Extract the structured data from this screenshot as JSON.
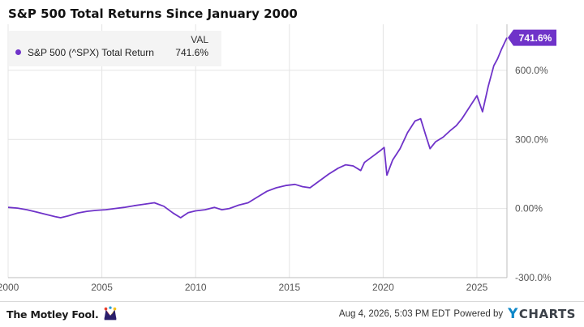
{
  "title": "S&P 500 Total Returns Since January 2000",
  "legend": {
    "header": "VAL",
    "series_name": "S&P 500 (^SPX) Total Return",
    "series_value": "741.6%",
    "color": "#6f33c9"
  },
  "last_value_label": "741.6%",
  "footer": {
    "brand": "The Motley Fool.",
    "brand_icon": "jester-hat-icon",
    "timestamp": "Aug 4, 2026, 5:03 PM EDT",
    "powered_by": "Powered by",
    "provider": "CHARTS",
    "provider_mark": "Y"
  },
  "chart_data": {
    "type": "line",
    "title": "S&P 500 Total Returns Since January 2000",
    "xlabel": "",
    "ylabel": "",
    "xlim": [
      2000,
      2026.6
    ],
    "ylim": [
      -300,
      800
    ],
    "x_ticks": [
      2000,
      2005,
      2010,
      2015,
      2020,
      2025
    ],
    "x_tick_labels": [
      "2000",
      "2005",
      "2010",
      "2015",
      "2020",
      "2025"
    ],
    "y_ticks": [
      -300,
      0,
      300,
      600
    ],
    "y_tick_labels": [
      "-300.0%",
      "0.00%",
      "300.0%",
      "600.0%"
    ],
    "grid": true,
    "legend_position": "top-left",
    "series": [
      {
        "name": "S&P 500 (^SPX) Total Return",
        "color": "#6f33c9",
        "x": [
          2000.0,
          2000.5,
          2001.0,
          2001.5,
          2002.0,
          2002.5,
          2002.8,
          2003.2,
          2003.7,
          2004.2,
          2004.7,
          2005.2,
          2005.7,
          2006.2,
          2006.7,
          2007.2,
          2007.8,
          2008.3,
          2008.8,
          2009.2,
          2009.6,
          2010.0,
          2010.5,
          2011.0,
          2011.4,
          2011.8,
          2012.3,
          2012.8,
          2013.3,
          2013.8,
          2014.3,
          2014.8,
          2015.3,
          2015.7,
          2016.1,
          2016.6,
          2017.1,
          2017.6,
          2018.0,
          2018.4,
          2018.8,
          2019.0,
          2019.5,
          2019.9,
          2020.05,
          2020.2,
          2020.5,
          2020.9,
          2021.3,
          2021.7,
          2022.0,
          2022.3,
          2022.5,
          2022.8,
          2023.2,
          2023.6,
          2023.9,
          2024.2,
          2024.6,
          2025.0,
          2025.3,
          2025.6,
          2025.9,
          2026.1,
          2026.3,
          2026.6
        ],
        "values": [
          5,
          2,
          -5,
          -15,
          -25,
          -35,
          -40,
          -32,
          -20,
          -12,
          -8,
          -5,
          0,
          5,
          12,
          18,
          25,
          10,
          -20,
          -40,
          -18,
          -10,
          -5,
          5,
          -5,
          0,
          15,
          25,
          50,
          75,
          90,
          100,
          105,
          95,
          90,
          120,
          150,
          175,
          190,
          185,
          165,
          200,
          230,
          255,
          265,
          145,
          210,
          260,
          330,
          380,
          390,
          310,
          260,
          290,
          310,
          340,
          360,
          390,
          440,
          490,
          420,
          530,
          620,
          650,
          690,
          741.6
        ]
      }
    ]
  }
}
